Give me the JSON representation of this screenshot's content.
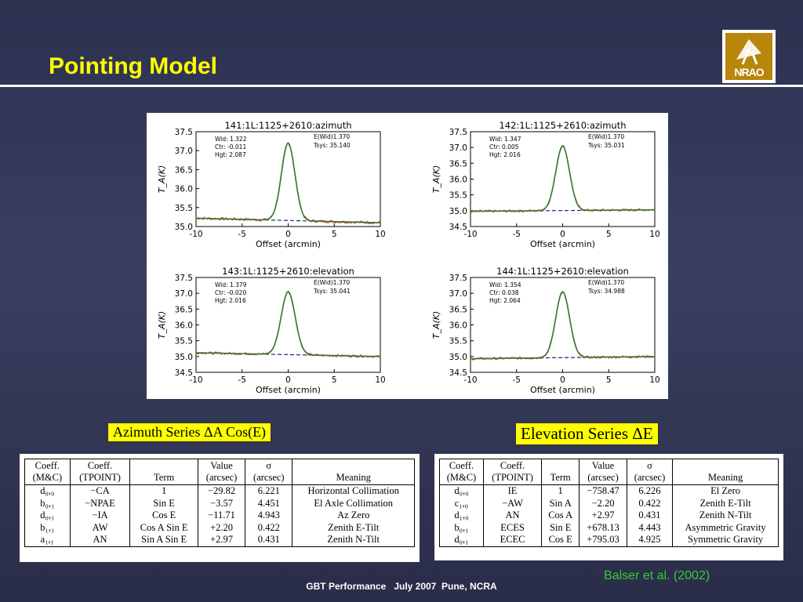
{
  "slide": {
    "title": "Pointing Model",
    "logo_text": "NRAO",
    "footer": "GBT Performance   July 2007  Pune, NCRA",
    "credit": "Balser et al. (2002)"
  },
  "chart_data": [
    {
      "type": "line",
      "title": "141:1L:1125+2610:azimuth",
      "xlabel": "Offset (arcmin)",
      "ylabel": "T_A(K)",
      "xlim": [
        -10,
        10
      ],
      "ylim": [
        35.0,
        37.5
      ],
      "yticks": [
        "35.0",
        "35.5",
        "36.0",
        "36.5",
        "37.0",
        "37.5"
      ],
      "xticks": [
        "-10",
        "-5",
        "0",
        "5",
        "10"
      ],
      "fit": {
        "baseline_start": 35.22,
        "baseline_end": 35.1,
        "peak": 37.2,
        "center": 0.0,
        "width": 1.322
      },
      "notes_left": [
        "Wid: 1.322",
        "Ctr: -0.011",
        "Hgt: 2.087"
      ],
      "notes_right": [
        "E(Wid)1.370",
        "Tsys: 35.140"
      ]
    },
    {
      "type": "line",
      "title": "142:1L:1125+2610:azimuth",
      "xlabel": "Offset (arcmin)",
      "ylabel": "T_A(K)",
      "xlim": [
        -10,
        10
      ],
      "ylim": [
        34.5,
        37.5
      ],
      "yticks": [
        "34.5",
        "35.0",
        "35.5",
        "36.0",
        "36.5",
        "37.0",
        "37.5"
      ],
      "xticks": [
        "-10",
        "-5",
        "0",
        "5",
        "10"
      ],
      "fit": {
        "baseline_start": 34.98,
        "baseline_end": 35.03,
        "peak": 37.05,
        "center": 0.0,
        "width": 1.347
      },
      "notes_left": [
        "Wid: 1.347",
        "Ctr: 0.005",
        "Hgt: 2.016"
      ],
      "notes_right": [
        "E(Wid)1.370",
        "Tsys: 35.031"
      ]
    },
    {
      "type": "line",
      "title": "143:1L:1125+2610:elevation",
      "xlabel": "Offset (arcmin)",
      "ylabel": "T_A(K)",
      "xlim": [
        -10,
        10
      ],
      "ylim": [
        34.5,
        37.5
      ],
      "yticks": [
        "34.5",
        "35.0",
        "35.5",
        "36.0",
        "36.5",
        "37.0",
        "37.5"
      ],
      "xticks": [
        "-10",
        "-5",
        "0",
        "5",
        "10"
      ],
      "fit": {
        "baseline_start": 35.12,
        "baseline_end": 35.0,
        "peak": 37.05,
        "center": 0.0,
        "width": 1.379
      },
      "notes_left": [
        "Wid: 1.379",
        "Ctr: -0.020",
        "Hgt: 2.016"
      ],
      "notes_right": [
        "E(Wid)1.370",
        "Tsys: 35.041"
      ]
    },
    {
      "type": "line",
      "title": "144:1L:1125+2610:elevation",
      "xlabel": "Offset (arcmin)",
      "ylabel": "T_A(K)",
      "xlim": [
        -10,
        10
      ],
      "ylim": [
        34.5,
        37.5
      ],
      "yticks": [
        "34.5",
        "35.0",
        "35.5",
        "36.0",
        "36.5",
        "37.0",
        "37.5"
      ],
      "xticks": [
        "-10",
        "-5",
        "0",
        "5",
        "10"
      ],
      "fit": {
        "baseline_start": 34.93,
        "baseline_end": 35.0,
        "peak": 37.05,
        "center": 0.0,
        "width": 1.354
      },
      "notes_left": [
        "Wid: 1.354",
        "Ctr: 0.038",
        "Hgt: 2.064"
      ],
      "notes_right": [
        "E(Wid)1.370",
        "Tsys: 34.988"
      ]
    }
  ],
  "azimuth": {
    "label": "Azimuth Series   ΔA Cos(E)",
    "headers": [
      [
        "Coeff.",
        "(M&C)"
      ],
      [
        "Coeff.",
        "(TPOINT)"
      ],
      [
        "",
        "Term"
      ],
      [
        "Value",
        "(arcsec)"
      ],
      [
        "σ",
        "(arcsec)"
      ],
      [
        "",
        "Meaning"
      ]
    ],
    "rows": [
      [
        "d₀,₀",
        "−CA",
        "1",
        "−29.82",
        "6.221",
        "Horizontal Collimation"
      ],
      [
        "b₀,₁",
        "−NPAE",
        "Sin E",
        "−3.57",
        "4.451",
        "El Axle Collimation"
      ],
      [
        "d₀,₁",
        "−IA",
        "Cos E",
        "−11.71",
        "4.943",
        "Az Zero"
      ],
      [
        "b₁,₁",
        "AW",
        "Cos A Sin E",
        "+2.20",
        "0.422",
        "Zenith E-Tilt"
      ],
      [
        "a₁,₁",
        "AN",
        "Sin A Sin E",
        "+2.97",
        "0.431",
        "Zenith N-Tilt"
      ]
    ]
  },
  "elevation": {
    "label": "Elevation Series   ΔE",
    "headers": [
      [
        "Coeff.",
        "(M&C)"
      ],
      [
        "Coeff.",
        "(TPOINT)"
      ],
      [
        "",
        "Term"
      ],
      [
        "Value",
        "(arcsec)"
      ],
      [
        "σ",
        "(arcsec)"
      ],
      [
        "",
        "Meaning"
      ]
    ],
    "rows": [
      [
        "d₀,₀",
        "IE",
        "1",
        "−758.47",
        "6.226",
        "El Zero"
      ],
      [
        "c₁,₀",
        "−AW",
        "Sin A",
        "−2.20",
        "0.422",
        "Zenith E-Tilt"
      ],
      [
        "d₁,₀",
        "AN",
        "Cos A",
        "+2.97",
        "0.431",
        "Zenith N-Tilt"
      ],
      [
        "b₀,₁",
        "ECES",
        "Sin E",
        "+678.13",
        "4.443",
        "Asymmetric Gravity"
      ],
      [
        "d₀,₁",
        "ECEC",
        "Cos E",
        "+795.03",
        "4.925",
        "Symmetric Gravity"
      ]
    ]
  },
  "colors": {
    "title": "#ffff00",
    "credit": "#33cc33",
    "fit": "#2e7d32",
    "data": "#e53935",
    "baseline": "#1a237e"
  }
}
